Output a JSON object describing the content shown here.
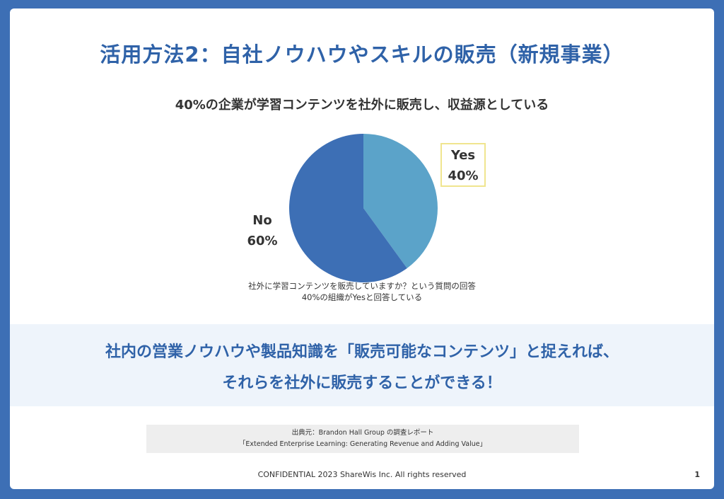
{
  "slide": {
    "title": "活用方法2：自社ノウハウやスキルの販売（新規事業）",
    "caption_line1": "社外に学習コンテンツを販売していますか？という質問の回答",
    "caption_line2": "40%の組織がYesと回答している",
    "highlight_line1": "社内の営業ノウハウや製品知識を「販売可能なコンテンツ」と捉えれば、",
    "highlight_line2": "それらを社外に販売することができる！",
    "source_line1": "出典元：Brandon Hall Group の調査レポート",
    "source_line2": "「Extended Enterprise Learning: Generating Revenue and Adding Value」",
    "footer": "CONFIDENTIAL 2023 ShareWis Inc. All rights reserved",
    "page_number": "1"
  },
  "chart_data": {
    "type": "pie",
    "title": "40%の企業が学習コンテンツを社外に販売し、収益源としている",
    "slices": [
      {
        "label": "Yes",
        "value": 40,
        "value_label": "40%",
        "color": "#5ba3c9"
      },
      {
        "label": "No",
        "value": 60,
        "value_label": "60%",
        "color": "#3d6fb5"
      }
    ],
    "start_angle_deg": 0,
    "direction": "clockwise"
  }
}
